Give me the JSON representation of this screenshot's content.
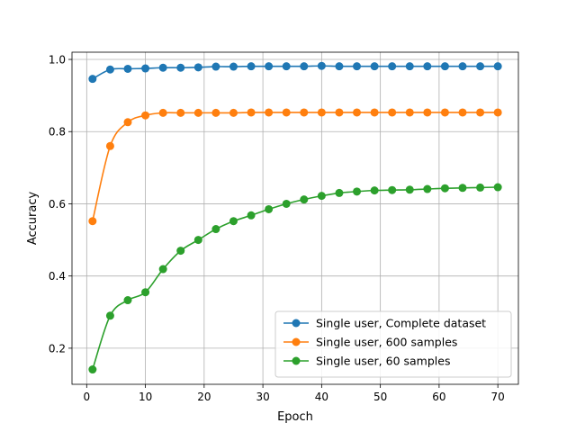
{
  "chart_data": {
    "type": "line",
    "title": "",
    "xlabel": "Epoch",
    "ylabel": "Accuracy",
    "xlim": [
      -2.5,
      73.5
    ],
    "ylim": [
      0.1,
      1.02
    ],
    "xticks": [
      0,
      10,
      20,
      30,
      40,
      50,
      60,
      70
    ],
    "yticks": [
      0.2,
      0.4,
      0.6,
      0.8,
      1.0
    ],
    "xtick_labels": [
      "0",
      "10",
      "20",
      "30",
      "40",
      "50",
      "60",
      "70"
    ],
    "ytick_labels": [
      "0.2",
      "0.4",
      "0.6",
      "0.8",
      "1.0"
    ],
    "grid": true,
    "legend_position": "lower-right",
    "x": [
      1,
      4,
      7,
      10,
      13,
      16,
      19,
      22,
      25,
      28,
      31,
      34,
      37,
      40,
      43,
      46,
      49,
      52,
      55,
      58,
      61,
      64,
      67,
      70
    ],
    "series": [
      {
        "name": "Single user, Complete dataset",
        "color": "#1f77b4",
        "values": [
          0.946,
          0.972,
          0.974,
          0.975,
          0.977,
          0.977,
          0.978,
          0.98,
          0.98,
          0.981,
          0.981,
          0.981,
          0.981,
          0.982,
          0.981,
          0.981,
          0.981,
          0.981,
          0.981,
          0.981,
          0.981,
          0.981,
          0.981,
          0.981
        ]
      },
      {
        "name": "Single user, 600 samples",
        "color": "#ff7f0e",
        "values": [
          0.552,
          0.76,
          0.826,
          0.845,
          0.852,
          0.852,
          0.852,
          0.852,
          0.852,
          0.853,
          0.853,
          0.853,
          0.853,
          0.853,
          0.853,
          0.853,
          0.853,
          0.853,
          0.853,
          0.853,
          0.853,
          0.853,
          0.853,
          0.853
        ]
      },
      {
        "name": "Single user, 60 samples",
        "color": "#2ca02c",
        "values": [
          0.141,
          0.29,
          0.333,
          0.355,
          0.419,
          0.47,
          0.5,
          0.53,
          0.552,
          0.568,
          0.585,
          0.6,
          0.612,
          0.622,
          0.63,
          0.634,
          0.637,
          0.638,
          0.639,
          0.641,
          0.643,
          0.644,
          0.645,
          0.646
        ]
      }
    ]
  }
}
